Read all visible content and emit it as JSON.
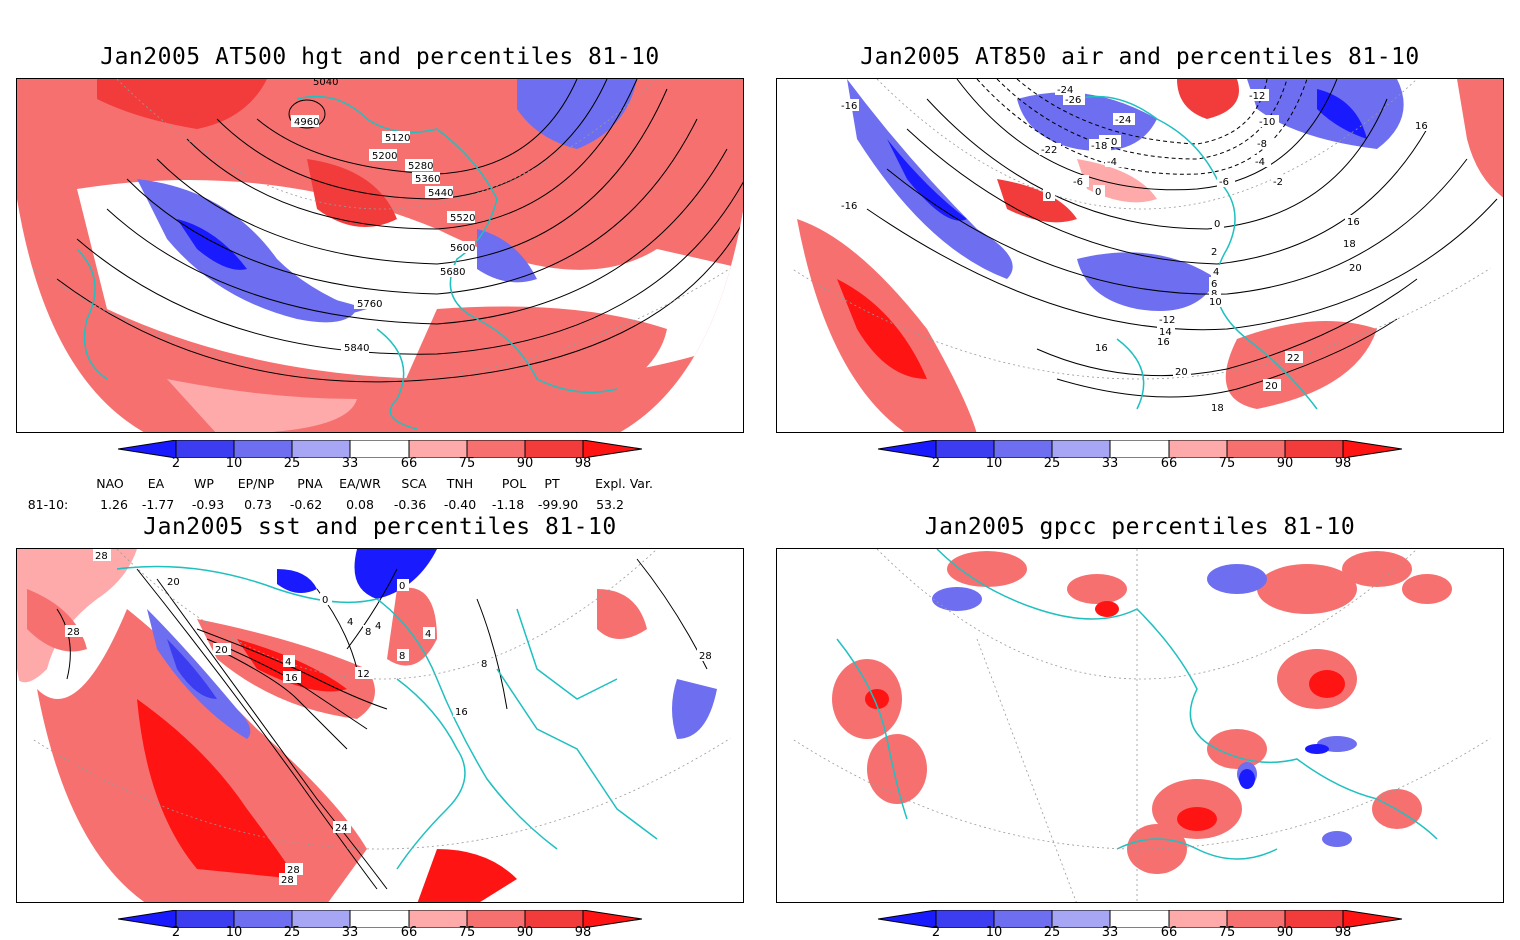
{
  "panels": [
    {
      "title": "Jan2005 AT500 hgt and percentiles 81-10",
      "variable": "500 hPa geopotential height",
      "contour_labels": [
        "5040",
        "4960",
        "5120",
        "5200",
        "5280",
        "5360",
        "5440",
        "5520",
        "5600",
        "5680",
        "5760",
        "5840"
      ]
    },
    {
      "title": "Jan2005 AT850 air and percentiles 81-10",
      "variable": "850 hPa air temperature",
      "contour_labels": [
        "-16",
        "-24",
        "-26",
        "-22",
        "-12",
        "-10",
        "-24",
        "-20",
        "-22",
        "-18",
        "-8",
        "-4",
        "-4",
        "-6",
        "-2",
        "-6",
        "-2",
        "0",
        "-2",
        "16",
        "-16",
        "0",
        "2",
        "4",
        "6",
        "8",
        "10",
        "16",
        "18",
        "20",
        "-12",
        "14",
        "16",
        "16",
        "22",
        "20",
        "20",
        "18"
      ]
    },
    {
      "title": "Jan2005 sst and percentiles 81-10",
      "variable": "sea surface temperature",
      "contour_labels": [
        "28",
        "20",
        "28",
        "0",
        "0",
        "4",
        "8",
        "4",
        "4",
        "8",
        "20",
        "4",
        "16",
        "12",
        "8",
        "16",
        "24",
        "28",
        "28",
        "28"
      ]
    },
    {
      "title": "Jan2005 gpcc percentiles 81-10",
      "variable": "GPCC precipitation",
      "contour_labels": []
    }
  ],
  "colorbar": {
    "labels": [
      "2",
      "10",
      "25",
      "33",
      "66",
      "75",
      "90",
      "98"
    ],
    "colors": [
      "#1a1aff",
      "#3c3cf0",
      "#6e6ef0",
      "#a6a6f5",
      "#ffffff",
      "#ffaaaa",
      "#f77070",
      "#f23c3c",
      "#ff1414"
    ]
  },
  "indices": {
    "row_label": "81-10:",
    "headers": [
      "NAO",
      "EA",
      "WP",
      "EP/NP",
      "PNA",
      "EA/WR",
      "SCA",
      "TNH",
      "POL",
      "PT",
      "Expl. Var."
    ],
    "values": [
      "1.26",
      "-1.77",
      "-0.93",
      "0.73",
      "-0.62",
      "0.08",
      "-0.36",
      "-0.40",
      "-1.18",
      "-99.90",
      "53.2"
    ]
  },
  "map_colors": {
    "coast": "#20c0c0",
    "contour": "#000000",
    "grid": "#9a9a9a"
  }
}
